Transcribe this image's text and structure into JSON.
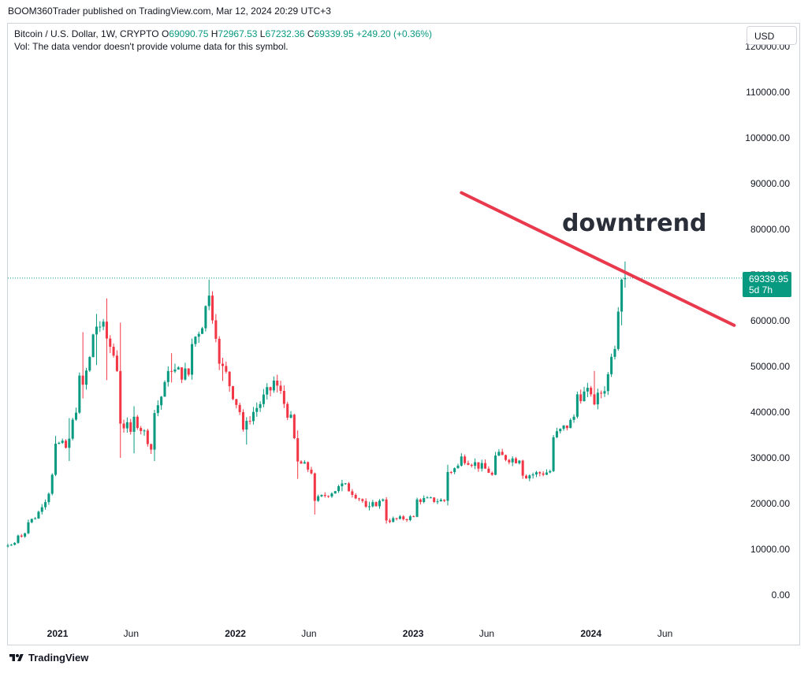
{
  "header": {
    "publisher_line": "BOOM360Trader published on TradingView.com, Mar 12, 2024 20:29 UTC+3"
  },
  "legend": {
    "symbol": "Bitcoin / U.S. Dollar, 1W, CRYPTO",
    "o_label": "O",
    "o_value": "69090.75",
    "h_label": "H",
    "h_value": "72967.53",
    "l_label": "L",
    "l_value": "67232.36",
    "c_label": "C",
    "c_value": "69339.95",
    "change": "+249.20 (+0.36%)",
    "vol_line": "Vol: The data vendor doesn't provide volume data for this symbol."
  },
  "currency_button": "USD",
  "price_badge": {
    "price": "69339.95",
    "countdown": "5d 7h"
  },
  "annotation": {
    "text": "downtrend"
  },
  "footer": {
    "brand": "TradingView"
  },
  "colors": {
    "up": "#089981",
    "down": "#f23645",
    "trendline": "#e8394d",
    "price_line": "#089981"
  },
  "icons": {
    "logo": "tradingview-logo-icon"
  },
  "chart_data": {
    "type": "candlestick",
    "y_axis": {
      "min": 0,
      "max": 120000,
      "ticks": [
        "0.00",
        "10000.00",
        "20000.00",
        "30000.00",
        "40000.00",
        "50000.00",
        "60000.00",
        "70000.00",
        "80000.00",
        "90000.00",
        "100000.00",
        "110000.00",
        "120000.00"
      ]
    },
    "x_axis": {
      "start": "2020-09-21",
      "end": "2024-11-04",
      "ticks": [
        {
          "date": "2021-01-01",
          "label": "2021"
        },
        {
          "date": "2021-06-01",
          "label": "Jun"
        },
        {
          "date": "2022-01-01",
          "label": "2022"
        },
        {
          "date": "2022-06-01",
          "label": "Jun"
        },
        {
          "date": "2023-01-01",
          "label": "2023"
        },
        {
          "date": "2023-06-01",
          "label": "Jun"
        },
        {
          "date": "2024-01-01",
          "label": "2024"
        },
        {
          "date": "2024-06-01",
          "label": "Jun"
        }
      ]
    },
    "current_price": 69339.95,
    "trendline": {
      "start": {
        "date": "2023-04-10",
        "price": 88000
      },
      "end": {
        "date": "2024-10-21",
        "price": 59000
      }
    },
    "candles": [
      {
        "d": "2020-09-21",
        "o": 10700,
        "h": 11200,
        "l": 10400,
        "c": 10800
      },
      {
        "d": "2020-10-12",
        "o": 11400,
        "h": 13200,
        "l": 11200,
        "c": 13000
      },
      {
        "d": "2020-11-02",
        "o": 13500,
        "h": 16500,
        "l": 13300,
        "c": 15900
      },
      {
        "d": "2020-11-30",
        "o": 18200,
        "h": 19900,
        "l": 17600,
        "c": 19200
      },
      {
        "d": "2020-12-28",
        "o": 26300,
        "h": 34800,
        "l": 26000,
        "c": 33100
      },
      {
        "d": "2021-01-25",
        "o": 32200,
        "h": 38700,
        "l": 29300,
        "c": 34200
      },
      {
        "d": "2021-02-22",
        "o": 48000,
        "h": 57500,
        "l": 43000,
        "c": 46000
      },
      {
        "d": "2021-03-22",
        "o": 57000,
        "h": 61500,
        "l": 50300,
        "c": 58700
      },
      {
        "d": "2021-04-12",
        "o": 59800,
        "h": 64900,
        "l": 47000,
        "c": 56100
      },
      {
        "d": "2021-05-10",
        "o": 49000,
        "h": 59600,
        "l": 30000,
        "c": 37500
      },
      {
        "d": "2021-06-07",
        "o": 35700,
        "h": 41300,
        "l": 31000,
        "c": 39000
      },
      {
        "d": "2021-07-19",
        "o": 31800,
        "h": 40500,
        "l": 29300,
        "c": 39800
      },
      {
        "d": "2021-08-23",
        "o": 49000,
        "h": 52900,
        "l": 46500,
        "c": 48900
      },
      {
        "d": "2021-10-04",
        "o": 48200,
        "h": 56100,
        "l": 47100,
        "c": 54900
      },
      {
        "d": "2021-11-08",
        "o": 63200,
        "h": 69000,
        "l": 62300,
        "c": 65500
      },
      {
        "d": "2021-12-06",
        "o": 50600,
        "h": 51900,
        "l": 46800,
        "c": 50100
      },
      {
        "d": "2022-01-24",
        "o": 36200,
        "h": 38900,
        "l": 32900,
        "c": 38100
      },
      {
        "d": "2022-03-28",
        "o": 46900,
        "h": 48200,
        "l": 44300,
        "c": 45800
      },
      {
        "d": "2022-05-09",
        "o": 34300,
        "h": 36000,
        "l": 25400,
        "c": 29200
      },
      {
        "d": "2022-06-13",
        "o": 26600,
        "h": 26800,
        "l": 17600,
        "c": 20600
      },
      {
        "d": "2022-08-08",
        "o": 23800,
        "h": 25200,
        "l": 22700,
        "c": 24400
      },
      {
        "d": "2022-10-03",
        "o": 19300,
        "h": 20400,
        "l": 18500,
        "c": 19400
      },
      {
        "d": "2022-11-07",
        "o": 20900,
        "h": 21400,
        "l": 15600,
        "c": 16300
      },
      {
        "d": "2023-01-09",
        "o": 17100,
        "h": 21300,
        "l": 17000,
        "c": 20900
      },
      {
        "d": "2023-03-13",
        "o": 20600,
        "h": 28500,
        "l": 19600,
        "c": 26900
      },
      {
        "d": "2023-04-10",
        "o": 28300,
        "h": 31000,
        "l": 28100,
        "c": 30300
      },
      {
        "d": "2023-06-19",
        "o": 26300,
        "h": 31300,
        "l": 26200,
        "c": 30500
      },
      {
        "d": "2023-08-14",
        "o": 29400,
        "h": 29600,
        "l": 25400,
        "c": 26100
      },
      {
        "d": "2023-10-16",
        "o": 27100,
        "h": 35000,
        "l": 26900,
        "c": 34500
      },
      {
        "d": "2023-12-04",
        "o": 39000,
        "h": 44500,
        "l": 38600,
        "c": 43900
      },
      {
        "d": "2024-01-08",
        "o": 43900,
        "h": 49000,
        "l": 41500,
        "c": 41700
      },
      {
        "d": "2024-02-12",
        "o": 48300,
        "h": 52800,
        "l": 47700,
        "c": 52100
      },
      {
        "d": "2024-03-04",
        "o": 62000,
        "h": 69200,
        "l": 59000,
        "c": 69000
      },
      {
        "d": "2024-03-11",
        "o": 69090.75,
        "h": 72967.53,
        "l": 67232.36,
        "c": 69339.95
      }
    ]
  }
}
